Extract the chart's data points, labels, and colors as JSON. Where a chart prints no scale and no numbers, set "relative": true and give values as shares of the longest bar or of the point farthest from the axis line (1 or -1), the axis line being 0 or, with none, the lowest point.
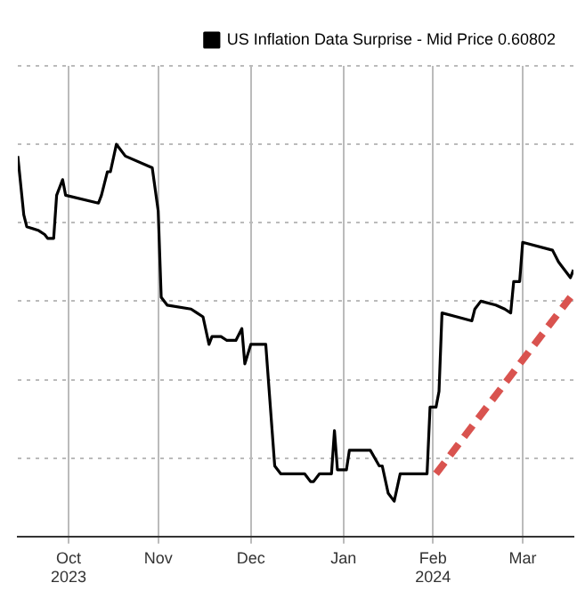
{
  "chart_data": {
    "type": "line",
    "relative": true,
    "x": [
      "2023-09-29",
      "2023-10-01",
      "2023-10-02",
      "2023-10-06",
      "2023-10-08",
      "2023-10-09",
      "2023-10-11",
      "2023-10-12",
      "2023-10-14",
      "2023-10-15",
      "2023-10-26",
      "2023-10-27",
      "2023-10-29",
      "2023-10-30",
      "2023-11-01",
      "2023-11-02",
      "2023-11-04",
      "2023-11-13",
      "2023-11-15",
      "2023-11-16",
      "2023-11-18",
      "2023-11-26",
      "2023-11-28",
      "2023-11-30",
      "2023-12-02",
      "2023-12-03",
      "2023-12-06",
      "2023-12-08",
      "2023-12-11",
      "2023-12-13",
      "2023-12-14",
      "2023-12-16",
      "2023-12-21",
      "2023-12-24",
      "2023-12-26",
      "2023-12-30",
      "2024-01-03",
      "2024-01-05",
      "2024-01-06",
      "2024-01-08",
      "2024-01-12",
      "2024-01-13",
      "2024-01-14",
      "2024-01-17",
      "2024-01-18",
      "2024-01-25",
      "2024-01-28",
      "2024-01-29",
      "2024-01-31",
      "2024-02-02",
      "2024-02-04",
      "2024-02-13",
      "2024-02-14",
      "2024-02-16",
      "2024-02-17",
      "2024-02-18",
      "2024-02-28",
      "2024-02-29",
      "2024-03-02",
      "2024-03-07",
      "2024-03-10",
      "2024-03-12",
      "2024-03-13",
      "2024-03-15",
      "2024-03-16",
      "2024-03-26",
      "2024-03-28",
      "2024-03-29",
      "2024-04-01",
      "2024-04-02"
    ],
    "series": [
      {
        "name": "US Inflation Data Surprise - Mid Price 0.60802",
        "color": "#000000",
        "values": [
          0.97,
          0.82,
          0.79,
          0.78,
          0.77,
          0.76,
          0.76,
          0.87,
          0.91,
          0.87,
          0.85,
          0.87,
          0.93,
          0.93,
          1,
          0.99,
          0.97,
          0.94,
          0.83,
          0.61,
          0.59,
          0.58,
          0.57,
          0.56,
          0.49,
          0.51,
          0.51,
          0.5,
          0.5,
          0.53,
          0.44,
          0.49,
          0.49,
          0.18,
          0.16,
          0.16,
          0.16,
          0.14,
          0.14,
          0.16,
          0.16,
          0.27,
          0.17,
          0.17,
          0.22,
          0.22,
          0.18,
          0.18,
          0.11,
          0.09,
          0.16,
          0.16,
          0.33,
          0.33,
          0.37,
          0.57,
          0.55,
          0.58,
          0.6,
          0.59,
          0.58,
          0.57,
          0.65,
          0.65,
          0.75,
          0.73,
          0.7,
          0.69,
          0.66,
          0.68
        ]
      },
      {
        "type": "line",
        "color": "#d9534f",
        "line_style": "dashed",
        "x": [
          "2024-02-16",
          "2024-04-01"
        ],
        "values": [
          0.16,
          0.61
        ]
      }
    ],
    "xlim": [
      "2023-09-29",
      "2024-04-02"
    ],
    "xticks": [
      {
        "value": "2023-10-16",
        "label": "Oct\n2023"
      },
      {
        "value": "2023-11-15",
        "label": "Nov"
      },
      {
        "value": "2023-12-16",
        "label": "Dec"
      },
      {
        "value": "2024-01-16",
        "label": "Jan"
      },
      {
        "value": "2024-02-15",
        "label": "Feb\n2024"
      },
      {
        "value": "2024-03-16",
        "label": "Mar"
      }
    ],
    "grid": true,
    "legend": "top right",
    "marker": "none",
    "line_style": "solid"
  }
}
